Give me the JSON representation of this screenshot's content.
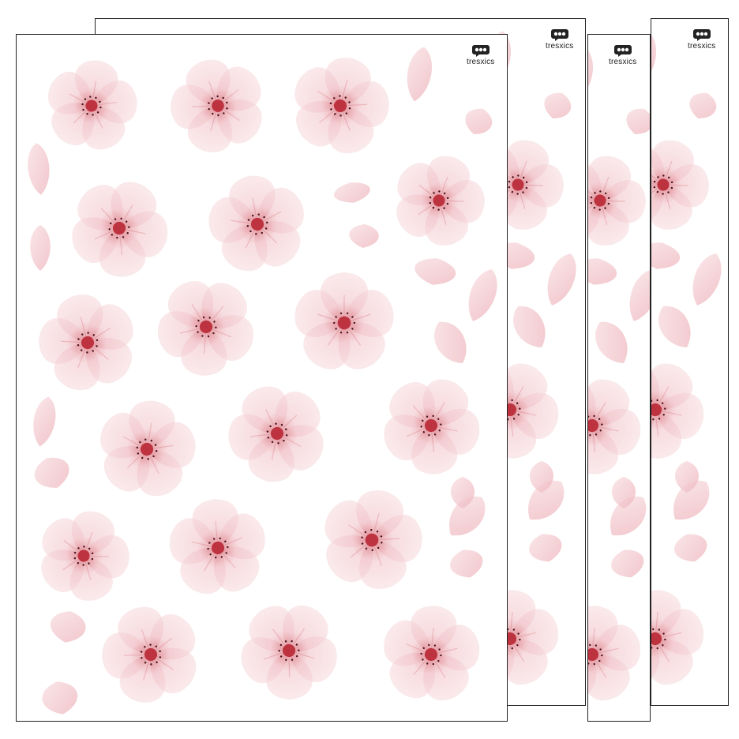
{
  "product": {
    "sheets_shown": 4,
    "design": "watercolor pink cherry blossom flowers and petals",
    "brand": "tresxics"
  },
  "colors": {
    "petal_light": "#f7dade",
    "petal_mid": "#f0c0c6",
    "petal_deep": "#d9727d",
    "center": "#b51f2c",
    "border": "#222222",
    "logo": "#222222"
  },
  "icons": [
    "tresxics-logo-icon"
  ]
}
